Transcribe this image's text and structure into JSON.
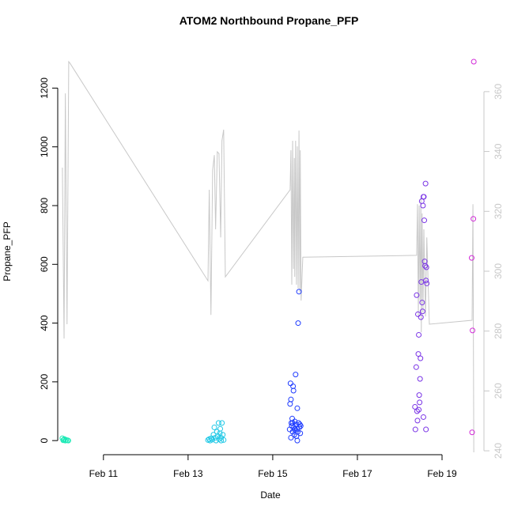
{
  "chart_data": {
    "type": "scatter",
    "title": "ATOM2 Northbound Propane_PFP",
    "x_label": "Date",
    "y_label": "Propane_PFP",
    "xlim": [
      9.92,
      19.99
    ],
    "ylim": [
      -48,
      1298
    ],
    "y2lim": [
      238.7,
      370.8
    ],
    "xticks": [
      {
        "value": 11,
        "label": "Feb 11"
      },
      {
        "value": 13,
        "label": "Feb 13"
      },
      {
        "value": 15,
        "label": "Feb 15"
      },
      {
        "value": 17,
        "label": "Feb 17"
      },
      {
        "value": 19,
        "label": "Feb 19"
      }
    ],
    "yticks": [
      0,
      200,
      400,
      600,
      800,
      1000,
      1200
    ],
    "y2ticks": [
      240,
      260,
      280,
      300,
      320,
      340,
      360
    ],
    "y2_color": "#c8c8c8",
    "series": [
      {
        "color": "#1de9b6",
        "x": [
          10.03,
          10.05,
          10.06,
          10.08,
          10.1,
          10.12,
          10.15,
          10.17
        ],
        "values": [
          8,
          1,
          3,
          5,
          0,
          2,
          1,
          0
        ]
      },
      {
        "color": "#1ec8e6",
        "x": [
          13.47,
          13.5,
          13.52,
          13.55,
          13.57,
          13.6,
          13.62,
          13.64,
          13.66,
          13.68,
          13.7,
          13.72,
          13.73,
          13.75,
          13.76,
          13.78,
          13.8,
          13.82,
          13.84,
          13.78
        ],
        "values": [
          2,
          5,
          0,
          8,
          3,
          20,
          45,
          10,
          0,
          30,
          15,
          60,
          5,
          25,
          40,
          10,
          60,
          20,
          2,
          0
        ]
      },
      {
        "color": "#1f3cff",
        "x": [
          15.4,
          15.41,
          15.42,
          15.43,
          15.44,
          15.45,
          15.46,
          15.47,
          15.48,
          15.49,
          15.5,
          15.51,
          15.52,
          15.53,
          15.54,
          15.55,
          15.56,
          15.57,
          15.58,
          15.59,
          15.6,
          15.61,
          15.62,
          15.63,
          15.64,
          15.65,
          15.66,
          15.43,
          15.47,
          15.52,
          15.58
        ],
        "values": [
          38,
          125,
          195,
          140,
          60,
          50,
          75,
          30,
          185,
          170,
          45,
          20,
          65,
          35,
          225,
          55,
          15,
          40,
          110,
          30,
          400,
          60,
          507,
          45,
          55,
          25,
          50,
          10,
          60,
          40,
          0
        ]
      },
      {
        "color": "#7a34e6",
        "x": [
          18.36,
          18.37,
          18.39,
          18.4,
          18.41,
          18.42,
          18.43,
          18.44,
          18.45,
          18.46,
          18.47,
          18.48,
          18.49,
          18.5,
          18.51,
          18.52,
          18.53,
          18.54,
          18.55,
          18.56,
          18.57,
          18.58,
          18.59,
          18.6,
          18.61,
          18.62,
          18.63,
          18.64,
          18.56,
          18.62,
          18.45
        ],
        "values": [
          115,
          38,
          250,
          495,
          100,
          68,
          430,
          295,
          360,
          155,
          130,
          210,
          280,
          420,
          540,
          815,
          470,
          440,
          800,
          830,
          830,
          750,
          610,
          595,
          875,
          545,
          590,
          535,
          80,
          38,
          105
        ]
      },
      {
        "color": "#d22ad8",
        "x": [
          19.71,
          19.7,
          19.72,
          19.74,
          19.75
        ],
        "values": [
          28,
          622,
          375,
          755,
          1290
        ]
      },
      {
        "type": "line",
        "axis": "y2",
        "color": "#c8c8c8",
        "x": [
          10.03,
          10.07,
          10.1,
          10.14,
          10.18,
          10.21,
          13.47,
          13.5,
          13.54,
          13.58,
          13.62,
          13.65,
          13.69,
          13.73,
          13.77,
          13.8,
          13.84,
          13.88,
          15.41,
          15.43,
          15.45,
          15.47,
          15.49,
          15.51,
          15.52,
          15.54,
          15.56,
          15.58,
          15.6,
          15.62,
          15.64,
          15.65,
          15.67,
          15.71,
          18.4,
          18.42,
          18.44,
          18.46,
          18.48,
          18.5,
          18.51,
          18.53,
          18.55,
          18.57,
          18.61,
          18.64,
          18.7,
          19.71,
          19.73,
          19.75
        ],
        "values": [
          334.6,
          277.5,
          359.4,
          282.3,
          370.0,
          369.5,
          296.8,
          327.2,
          285.4,
          333.8,
          338.8,
          314.0,
          339.9,
          339.3,
          311.3,
          343.6,
          347.3,
          298.1,
          327.2,
          340.4,
          295.5,
          343.6,
          300.8,
          337.8,
          298.1,
          343.6,
          295.5,
          341.7,
          294.2,
          347.0,
          292.8,
          340.4,
          290.2,
          304.7,
          305.3,
          322.4,
          284.9,
          321.9,
          290.2,
          324.5,
          279.6,
          319.3,
          286.2,
          314.0,
          284.9,
          311.3,
          282.3,
          283.6,
          322.4,
          239.5
        ]
      }
    ]
  }
}
